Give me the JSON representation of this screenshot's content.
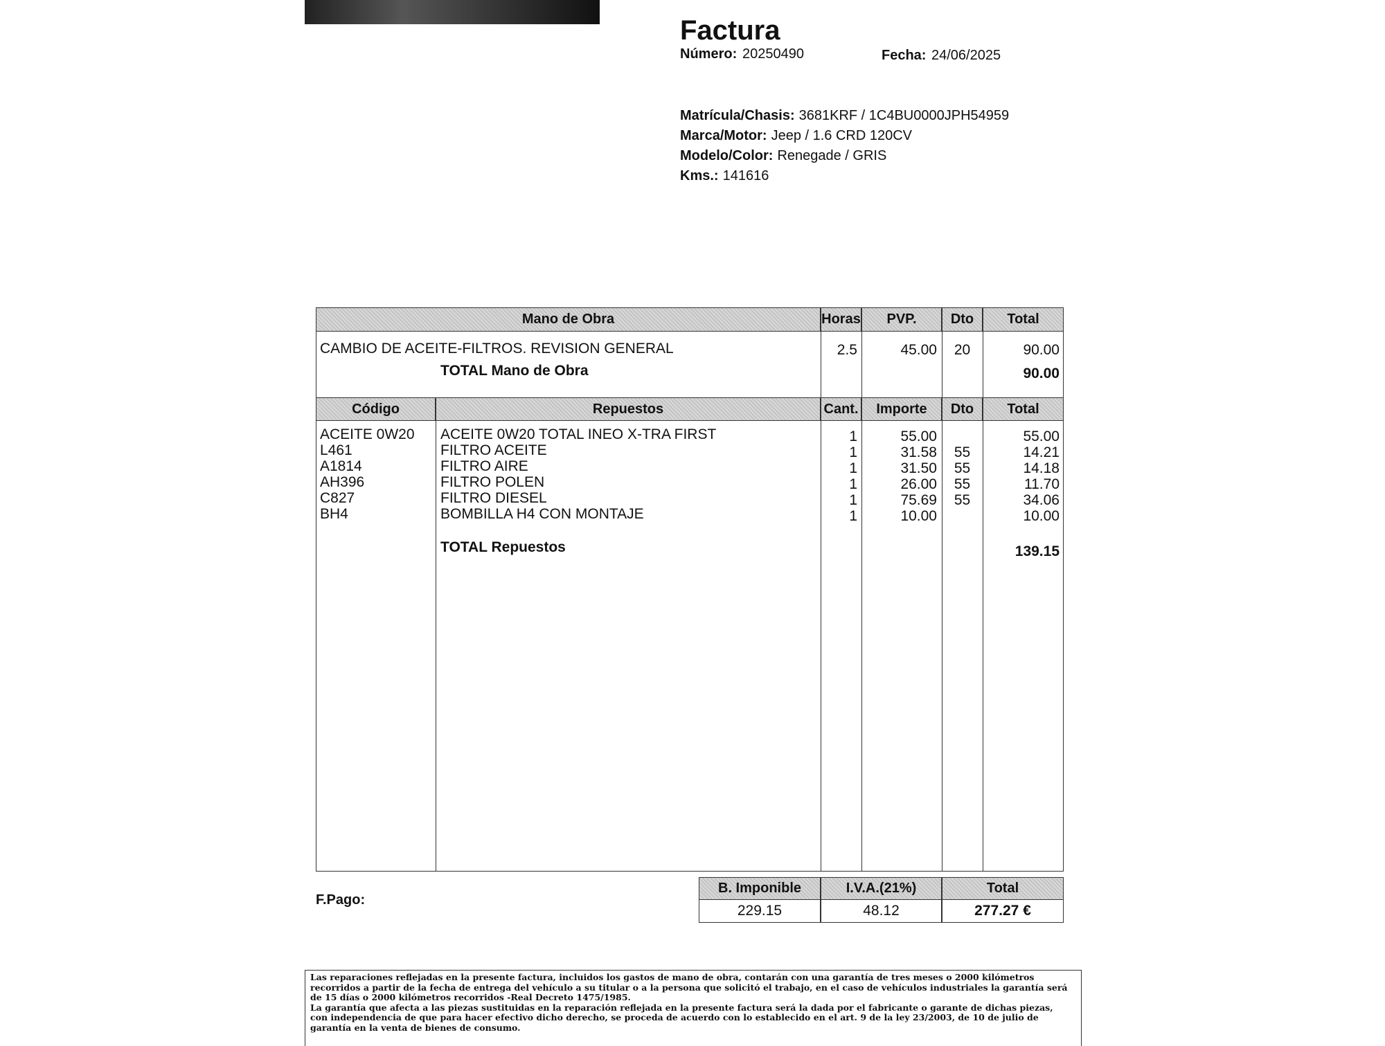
{
  "header": {
    "title": "Factura",
    "numero_label": "Número:",
    "numero": "20250490",
    "fecha_label": "Fecha:",
    "fecha": "24/06/2025"
  },
  "vehicle": [
    {
      "label": "Matrícula/Chasis:",
      "value": "3681KRF / 1C4BU0000JPH54959"
    },
    {
      "label": "Marca/Motor:",
      "value": "Jeep / 1.6 CRD 120CV"
    },
    {
      "label": "Modelo/Color:",
      "value": "Renegade / GRIS"
    },
    {
      "label": "Kms.:",
      "value": "141616"
    }
  ],
  "labor": {
    "headers": [
      "Mano de Obra",
      "Horas",
      "PVP.",
      "Dto",
      "Total"
    ],
    "rows": [
      [
        "CAMBIO DE ACEITE-FILTROS. REVISION GENERAL",
        "2.5",
        "45.00",
        "20",
        "90.00"
      ]
    ],
    "total_label": "TOTAL Mano de Obra",
    "total": "90.00"
  },
  "parts": {
    "headers": [
      "Código",
      "Repuestos",
      "Cant.",
      "Importe",
      "Dto",
      "Total"
    ],
    "rows": [
      [
        "ACEITE 0W20",
        "ACEITE 0W20 TOTAL INEO X-TRA FIRST",
        "1",
        "55.00",
        "",
        "55.00"
      ],
      [
        "L461",
        "FILTRO ACEITE",
        "1",
        "31.58",
        "55",
        "14.21"
      ],
      [
        "A1814",
        "FILTRO AIRE",
        "1",
        "31.50",
        "55",
        "14.18"
      ],
      [
        "AH396",
        "FILTRO POLEN",
        "1",
        "26.00",
        "55",
        "11.70"
      ],
      [
        "C827",
        "FILTRO DIESEL",
        "1",
        "75.69",
        "55",
        "34.06"
      ],
      [
        "BH4",
        "BOMBILLA H4 CON MONTAJE",
        "1",
        "10.00",
        "",
        "10.00"
      ]
    ],
    "total_label": "TOTAL Repuestos",
    "total": "139.15"
  },
  "summary": {
    "headers": [
      "B. Imponible",
      "I.V.A.(21%)",
      "Total"
    ],
    "values": [
      "229.15",
      "48.12",
      "277.27 €"
    ]
  },
  "payment_label": "F.Pago:",
  "footer": [
    "Las reparaciones reflejadas en la presente factura, incluidos los gastos de mano de obra, contarán con una garantía de tres meses o 2000 kilómetros recorridos a partir de la fecha de entrega del vehículo a su titular o a la persona que solicitó el trabajo, en el caso de vehículos industriales la garantía será de 15 días o 2000 kilómetros recorridos -Real Decreto 1475/1985.",
    "La garantía que afecta a las piezas sustituidas en la reparación reflejada en la presente factura será la dada por el fabricante o garante de dichas piezas, con independencia de que para hacer efectivo dicho derecho, se proceda de acuerdo con lo establecido en el art. 9 de la ley 23/2003, de 10 de julio de garantía en la venta de bienes de consumo."
  ]
}
